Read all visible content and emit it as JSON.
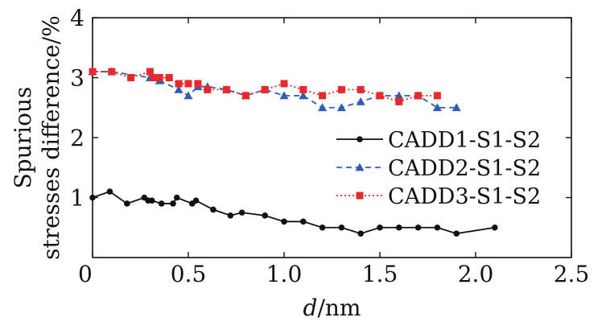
{
  "chart_data": {
    "type": "line",
    "xlabel_var": "d",
    "xlabel_unit": "/nm",
    "ylabel_line1": "Spurious",
    "ylabel_line2": "stresses difference/%",
    "xlim": [
      0,
      2.5
    ],
    "ylim": [
      0,
      4
    ],
    "x_ticks": [
      "0",
      "0.5",
      "1.0",
      "1.5",
      "2.0",
      "2.5"
    ],
    "y_ticks": [
      "1",
      "2",
      "3",
      "4"
    ],
    "grid": false,
    "legend_position": "right",
    "series": [
      {
        "name": "CADD1-S1-S2",
        "color": "#111111",
        "marker": "circle",
        "line": "solid",
        "x": [
          0.0,
          0.09,
          0.18,
          0.27,
          0.29,
          0.31,
          0.36,
          0.42,
          0.44,
          0.52,
          0.54,
          0.63,
          0.72,
          0.78,
          0.9,
          1.0,
          1.1,
          1.2,
          1.3,
          1.4,
          1.5,
          1.6,
          1.7,
          1.8,
          1.9,
          2.1
        ],
        "y": [
          1.0,
          1.1,
          0.9,
          1.0,
          0.95,
          0.95,
          0.9,
          0.9,
          1.0,
          0.9,
          0.95,
          0.8,
          0.7,
          0.75,
          0.7,
          0.6,
          0.6,
          0.5,
          0.5,
          0.4,
          0.5,
          0.5,
          0.5,
          0.5,
          0.4,
          0.5
        ]
      },
      {
        "name": "CADD2-S1-S2",
        "color": "#2e5fb0",
        "marker": "triangle",
        "line": "dashed",
        "x": [
          0.0,
          0.1,
          0.3,
          0.35,
          0.45,
          0.5,
          0.55,
          0.6,
          0.7,
          0.8,
          0.9,
          1.0,
          1.1,
          1.2,
          1.3,
          1.4,
          1.5,
          1.6,
          1.7,
          1.8,
          1.9
        ],
        "y": [
          3.1,
          3.1,
          3.0,
          2.95,
          2.8,
          2.7,
          2.85,
          2.85,
          2.8,
          2.7,
          2.8,
          2.7,
          2.7,
          2.5,
          2.5,
          2.6,
          2.7,
          2.7,
          2.7,
          2.5,
          2.5
        ]
      },
      {
        "name": "CADD3-S1-S2",
        "color": "#e8282a",
        "marker": "square",
        "line": "dotted",
        "x": [
          0.0,
          0.1,
          0.2,
          0.3,
          0.32,
          0.35,
          0.4,
          0.45,
          0.5,
          0.55,
          0.6,
          0.7,
          0.8,
          0.9,
          1.0,
          1.1,
          1.2,
          1.3,
          1.4,
          1.5,
          1.6,
          1.7,
          1.8
        ],
        "y": [
          3.1,
          3.1,
          3.0,
          3.1,
          3.0,
          3.0,
          3.0,
          2.9,
          2.9,
          2.9,
          2.8,
          2.8,
          2.7,
          2.8,
          2.9,
          2.8,
          2.7,
          2.8,
          2.8,
          2.7,
          2.6,
          2.7,
          2.7
        ]
      }
    ]
  }
}
